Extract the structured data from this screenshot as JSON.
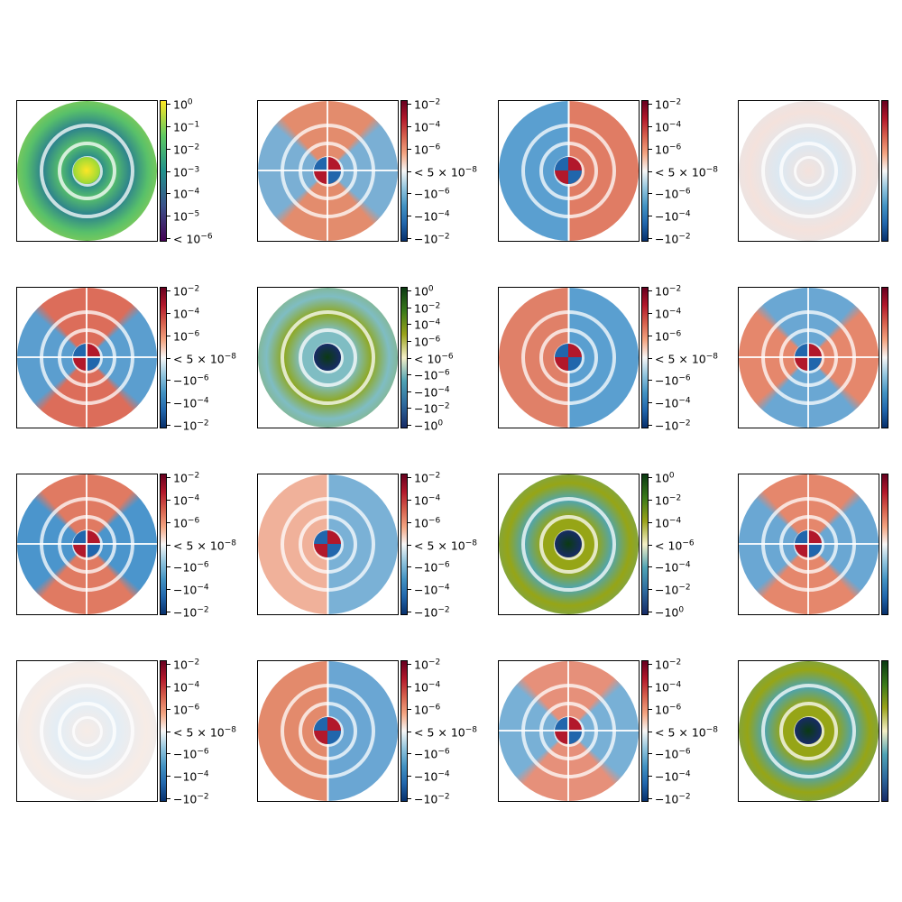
{
  "chart_data": {
    "type": "heatmap",
    "layout": "4x4 grid of polar field maps with colorbars",
    "colormaps": {
      "viridis": [
        "#440154",
        "#3b528b",
        "#21918c",
        "#5ec962",
        "#fde725"
      ],
      "diverging": [
        "#08306b",
        "#2166ac",
        "#4393c3",
        "#92c5de",
        "#f7f7f7",
        "#f4a582",
        "#d6604d",
        "#b2182b",
        "#67001f"
      ],
      "signed_green": [
        "#172b66",
        "#2e6a9e",
        "#4fa3b5",
        "#f5f0c8",
        "#9aa31a",
        "#3a7a1a",
        "#0b3a12"
      ]
    },
    "panels": [
      {
        "id": "r1c1",
        "colormap": "viridis",
        "ticks": [
          "10^0",
          "10^-1",
          "10^-2",
          "10^-3",
          "10^-4",
          "10^-5",
          "< 10^-6"
        ],
        "disc_colors": [
          "#d4e335",
          "#58c06a",
          "#29888c",
          "#2a7f8e"
        ],
        "pattern": "radial"
      },
      {
        "id": "r1c2",
        "colormap": "diverging",
        "ticks": [
          "10^-2",
          "10^-4",
          "10^-6",
          "< 5 × 10^-8",
          "-10^-6",
          "-10^-4",
          "-10^-2"
        ],
        "disc_colors": [
          "#e38c6d",
          "#7aafd4"
        ],
        "pattern": "cross"
      },
      {
        "id": "r1c3",
        "colormap": "diverging",
        "ticks": [
          "10^-2",
          "10^-4",
          "10^-6",
          "< 5 × 10^-8",
          "-10^-6",
          "-10^-4",
          "-10^-2"
        ],
        "disc_colors": [
          "#e07c64",
          "#5a9fd0"
        ],
        "pattern": "split"
      },
      {
        "id": "r1c4",
        "colormap": "diverging",
        "ticks": [],
        "disc_colors": [
          "#f4e2dc",
          "#dbe8f2"
        ],
        "pattern": "faint"
      },
      {
        "id": "r2c1",
        "colormap": "diverging",
        "ticks": [
          "10^-2",
          "10^-4",
          "10^-6",
          "< 5 × 10^-8",
          "-10^-6",
          "-10^-4",
          "-10^-2"
        ],
        "disc_colors": [
          "#dc6d5a",
          "#5b9ecf"
        ],
        "pattern": "cross"
      },
      {
        "id": "r2c2",
        "colormap": "signed_green",
        "ticks": [
          "10^0",
          "10^-2",
          "10^-4",
          "10^-6",
          "< 10^-6",
          "-10^-6",
          "-10^-4",
          "-10^-2",
          "-10^0"
        ],
        "disc_colors": [
          "#8fa71b",
          "#7fbdc3"
        ],
        "pattern": "radial"
      },
      {
        "id": "r2c3",
        "colormap": "diverging",
        "ticks": [
          "10^-2",
          "10^-4",
          "10^-6",
          "< 5 × 10^-8",
          "-10^-6",
          "-10^-4",
          "-10^-2"
        ],
        "disc_colors": [
          "#5a9fd0",
          "#e08068"
        ],
        "pattern": "split"
      },
      {
        "id": "r2c4",
        "colormap": "diverging",
        "ticks": [],
        "disc_colors": [
          "#6aa7d3",
          "#e5876c"
        ],
        "pattern": "cross"
      },
      {
        "id": "r3c1",
        "colormap": "diverging",
        "ticks": [
          "10^-2",
          "10^-4",
          "10^-6",
          "< 5 × 10^-8",
          "-10^-6",
          "-10^-4",
          "-10^-2"
        ],
        "disc_colors": [
          "#e07a62",
          "#4b95cc"
        ],
        "pattern": "cross"
      },
      {
        "id": "r3c2",
        "colormap": "diverging",
        "ticks": [
          "10^-2",
          "10^-4",
          "10^-6",
          "< 5 × 10^-8",
          "-10^-6",
          "-10^-4",
          "-10^-2"
        ],
        "disc_colors": [
          "#7ab1d6",
          "#f0b19a"
        ],
        "pattern": "split"
      },
      {
        "id": "r3c3",
        "colormap": "signed_green",
        "ticks": [
          "10^0",
          "10^-2",
          "10^-4",
          "< 10^-6",
          "-10^-4",
          "-10^-2",
          "-10^0"
        ],
        "disc_colors": [
          "#4da5b4",
          "#96a516"
        ],
        "pattern": "radial"
      },
      {
        "id": "r3c4",
        "colormap": "diverging",
        "ticks": [],
        "disc_colors": [
          "#e5876c",
          "#6aa7d3"
        ],
        "pattern": "cross"
      },
      {
        "id": "r4c1",
        "colormap": "diverging",
        "ticks": [
          "10^-2",
          "10^-4",
          "10^-6",
          "< 5 × 10^-8",
          "-10^-6",
          "-10^-4",
          "-10^-2"
        ],
        "disc_colors": [
          "#f7ece6",
          "#e3edf5"
        ],
        "pattern": "faint"
      },
      {
        "id": "r4c2",
        "colormap": "diverging",
        "ticks": [
          "10^-2",
          "10^-4",
          "10^-6",
          "< 5 × 10^-8",
          "-10^-6",
          "-10^-4",
          "-10^-2"
        ],
        "disc_colors": [
          "#6aa6d3",
          "#e38a6c"
        ],
        "pattern": "split"
      },
      {
        "id": "r4c3",
        "colormap": "diverging",
        "ticks": [
          "10^-2",
          "10^-4",
          "10^-6",
          "< 5 × 10^-8",
          "-10^-6",
          "-10^-4",
          "-10^-2"
        ],
        "disc_colors": [
          "#e6907a",
          "#78b0d6"
        ],
        "pattern": "cross"
      },
      {
        "id": "r4c4",
        "colormap": "signed_green",
        "ticks": [],
        "disc_colors": [
          "#4ba3b3",
          "#96a516"
        ],
        "pattern": "radial"
      }
    ]
  }
}
